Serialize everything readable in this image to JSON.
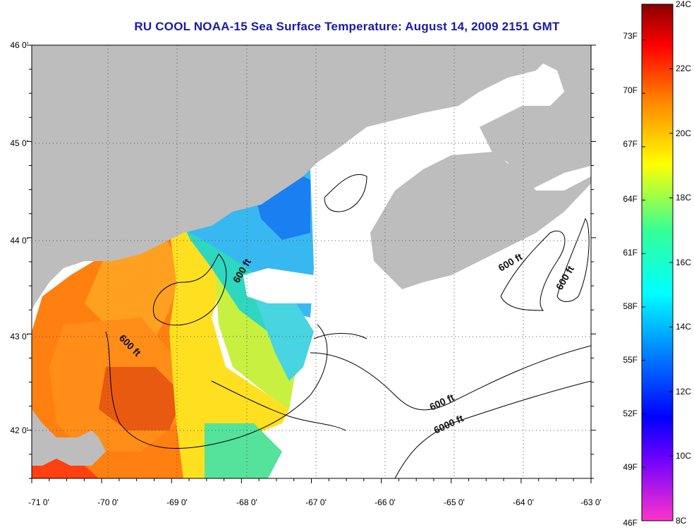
{
  "title": "RU COOL  NOAA-15  Sea Surface Temperature:  August 14, 2009 2151 GMT",
  "map": {
    "lat_labels": [
      "46 0'",
      "45 0'",
      "44 0'",
      "43 0'",
      "42 0'"
    ],
    "lon_labels": [
      "-71 0'",
      "-70 0'",
      "-69 0'",
      "-68 0'",
      "-67 0'",
      "-66 0'",
      "-65 0'",
      "-64 0'",
      "-63 0'"
    ],
    "lat_range": [
      41.5,
      46.0
    ],
    "lon_range": [
      -71.0,
      -63.0
    ],
    "grid": "dotted",
    "land_color": "#bdbdbd",
    "no_data_color": "#ffffff",
    "contour_labels": [
      "600 ft",
      "600 ft",
      "600 ft",
      "600 ft",
      "600 ft",
      "6000 ft"
    ]
  },
  "colorbar": {
    "celsius_labels": [
      "24C",
      "22C",
      "20C",
      "18C",
      "16C",
      "14C",
      "12C",
      "10C",
      "8C"
    ],
    "fahrenheit_labels": [
      "73F",
      "70F",
      "67F",
      "64F",
      "61F",
      "58F",
      "55F",
      "52F",
      "49F",
      "46F"
    ],
    "range_c": [
      8,
      24
    ],
    "range_f": [
      46,
      75
    ]
  }
}
